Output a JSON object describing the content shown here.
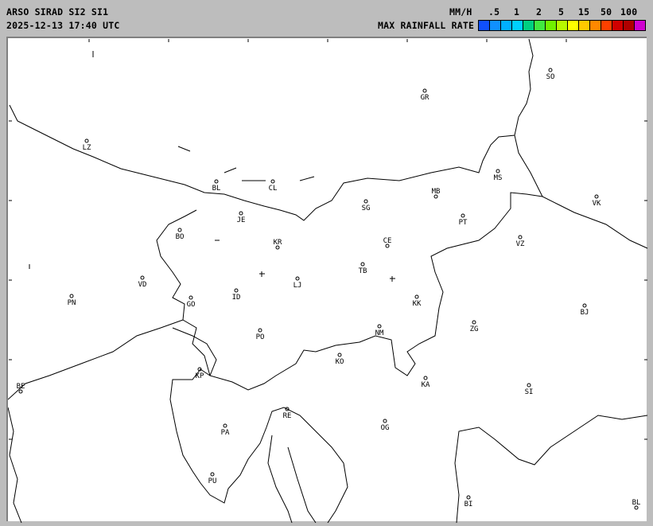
{
  "header": {
    "title": "ARSO SIRAD SI2 SI1",
    "timestamp": "2025-12-13 17:40 UTC"
  },
  "legend": {
    "unit": "MM/H",
    "label": "MAX RAINFALL RATE",
    "ticks": [
      ".5",
      "1",
      "2",
      "5",
      "15",
      "50",
      "100"
    ],
    "colors": [
      "#1050ff",
      "#1090ff",
      "#00b0ff",
      "#00d0ff",
      "#00d080",
      "#40e840",
      "#70f000",
      "#b8f800",
      "#ffff00",
      "#ffc800",
      "#ff8800",
      "#ff4000",
      "#d00000",
      "#b00000",
      "#d000d0"
    ]
  },
  "map": {
    "cities": [
      "SO",
      "GR",
      "LZ",
      "BL",
      "CL",
      "MB",
      "MS",
      "VK",
      "SG",
      "JE",
      "PT",
      "BO",
      "KR",
      "CE",
      "VZ",
      "TB",
      "VD",
      "LJ",
      "PN",
      "ID",
      "GO",
      "KK",
      "BJ",
      "ZG",
      "NM",
      "PO",
      "KO",
      "KA",
      "KP",
      "SI",
      "BE",
      "RE",
      "OG",
      "PA",
      "PU",
      "BI",
      "BL"
    ]
  }
}
